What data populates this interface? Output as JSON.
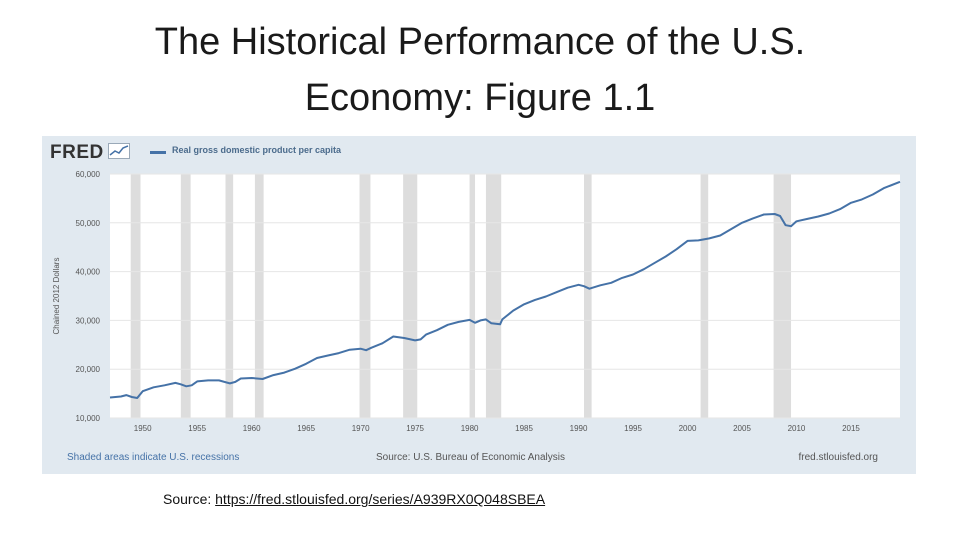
{
  "slide": {
    "title_line1": "The Historical Performance of the U.S.",
    "title_line2": "Economy: Figure 1.1"
  },
  "source": {
    "label": "Source: ",
    "url": "https://fred.stlouisfed.org/series/A939RX0Q048SBEA"
  },
  "fred": {
    "logo": "FRED",
    "footer_left": "Shaded areas indicate U.S. recessions",
    "footer_mid": "Source: U.S. Bureau of Economic Analysis",
    "footer_right": "fred.stlouisfed.org"
  },
  "colors": {
    "line": "#4572a7",
    "recession": "#dddddd",
    "panel_bg": "#e1e9f0",
    "plot_bg": "#ffffff"
  },
  "chart_data": {
    "type": "line",
    "title": "",
    "xlabel": "",
    "ylabel": "Chained 2012 Dollars",
    "legend": "top-left",
    "grid": true,
    "xlim": [
      1947,
      2019.5
    ],
    "ylim": [
      10000,
      60000
    ],
    "x_ticks": [
      1950,
      1955,
      1960,
      1965,
      1970,
      1975,
      1980,
      1985,
      1990,
      1995,
      2000,
      2005,
      2010,
      2015
    ],
    "y_ticks": [
      10000,
      20000,
      30000,
      40000,
      50000,
      60000
    ],
    "y_tick_labels": [
      "10,000",
      "20,000",
      "30,000",
      "40,000",
      "50,000",
      "60,000"
    ],
    "recessions": [
      [
        1948.9,
        1949.8
      ],
      [
        1953.5,
        1954.4
      ],
      [
        1957.6,
        1958.3
      ],
      [
        1960.3,
        1961.1
      ],
      [
        1969.9,
        1970.9
      ],
      [
        1973.9,
        1975.2
      ],
      [
        1980.0,
        1980.5
      ],
      [
        1981.5,
        1982.9
      ],
      [
        1990.5,
        1991.2
      ],
      [
        2001.2,
        2001.9
      ],
      [
        2007.9,
        2009.5
      ]
    ],
    "series": [
      {
        "name": "Real gross domestic product per capita",
        "x": [
          1947,
          1948,
          1948.5,
          1949,
          1949.5,
          1950,
          1951,
          1952,
          1953,
          1953.5,
          1954,
          1954.5,
          1955,
          1956,
          1957,
          1958,
          1958.5,
          1959,
          1960,
          1961,
          1962,
          1963,
          1964,
          1965,
          1966,
          1967,
          1968,
          1969,
          1970,
          1970.5,
          1971,
          1972,
          1973,
          1974,
          1975,
          1975.5,
          1976,
          1977,
          1978,
          1979,
          1980,
          1980.5,
          1981,
          1981.5,
          1982,
          1982.8,
          1983,
          1984,
          1985,
          1986,
          1987,
          1988,
          1989,
          1990,
          1990.5,
          1991,
          1992,
          1993,
          1994,
          1995,
          1996,
          1997,
          1998,
          1999,
          2000,
          2001,
          2002,
          2003,
          2004,
          2005,
          2006,
          2007,
          2008,
          2008.5,
          2009,
          2009.5,
          2010,
          2011,
          2012,
          2013,
          2014,
          2015,
          2016,
          2017,
          2018,
          2019.5
        ],
        "y": [
          14200,
          14400,
          14700,
          14300,
          14100,
          15500,
          16300,
          16700,
          17200,
          16900,
          16500,
          16700,
          17500,
          17700,
          17700,
          17100,
          17400,
          18100,
          18200,
          18000,
          18800,
          19300,
          20100,
          21100,
          22300,
          22800,
          23300,
          24000,
          24200,
          23900,
          24400,
          25300,
          26700,
          26400,
          25900,
          26100,
          27100,
          28000,
          29100,
          29700,
          30100,
          29500,
          30000,
          30200,
          29400,
          29200,
          30200,
          32000,
          33300,
          34200,
          34900,
          35800,
          36700,
          37300,
          37000,
          36500,
          37200,
          37700,
          38700,
          39400,
          40500,
          41800,
          43100,
          44600,
          46300,
          46400,
          46800,
          47400,
          48700,
          50000,
          50900,
          51700,
          51800,
          51400,
          49500,
          49300,
          50300,
          50800,
          51300,
          51900,
          52800,
          54100,
          54800,
          55800,
          57100,
          58400
        ]
      }
    ]
  }
}
